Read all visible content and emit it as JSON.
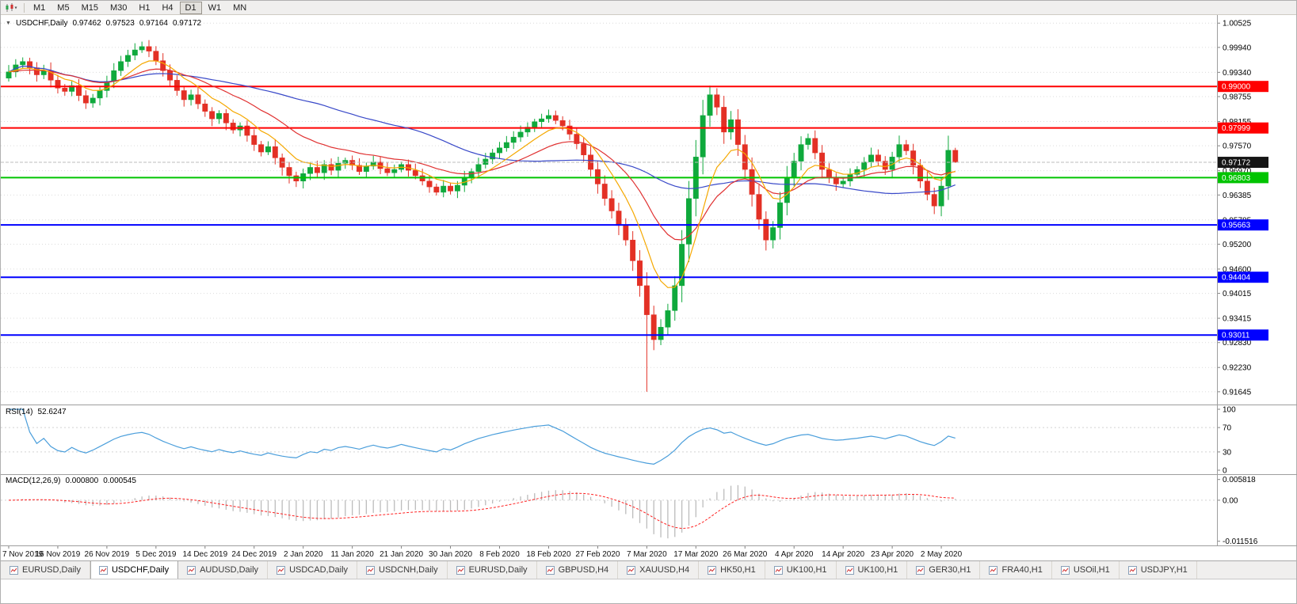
{
  "toolbar": {
    "timeframes": [
      {
        "label": "M1"
      },
      {
        "label": "M5"
      },
      {
        "label": "M15"
      },
      {
        "label": "M30"
      },
      {
        "label": "H1"
      },
      {
        "label": "H4"
      },
      {
        "label": "D1",
        "active": true
      },
      {
        "label": "W1"
      },
      {
        "label": "MN"
      }
    ]
  },
  "readout": {
    "collapse_arrow": "▼",
    "symbol": "USDCHF,Daily",
    "open": "0.97462",
    "high": "0.97523",
    "low": "0.97164",
    "close": "0.97172"
  },
  "chart_data": {
    "type": "candlestick",
    "symbol": "USDCHF",
    "timeframe": "Daily",
    "bull_color": "#0fa93c",
    "bear_color": "#e33025",
    "x_labels": [
      "7 Nov 2019",
      "16 Nov 2019",
      "26 Nov 2019",
      "5 Dec 2019",
      "14 Dec 2019",
      "24 Dec 2019",
      "2 Jan 2020",
      "11 Jan 2020",
      "21 Jan 2020",
      "30 Jan 2020",
      "8 Feb 2020",
      "18 Feb 2020",
      "27 Feb 2020",
      "7 Mar 2020",
      "17 Mar 2020",
      "26 Mar 2020",
      "4 Apr 2020",
      "14 Apr 2020",
      "23 Apr 2020",
      "2 May 2020"
    ],
    "x_label_every_n_candles": 7,
    "first_open": 0.992,
    "closes": [
      0.9935,
      0.9952,
      0.996,
      0.9945,
      0.9928,
      0.9938,
      0.9915,
      0.9896,
      0.9888,
      0.9902,
      0.9878,
      0.986,
      0.9872,
      0.989,
      0.9912,
      0.9938,
      0.996,
      0.9975,
      0.9988,
      0.9996,
      0.9985,
      0.9962,
      0.9938,
      0.9915,
      0.989,
      0.9868,
      0.988,
      0.9858,
      0.984,
      0.9822,
      0.9835,
      0.9812,
      0.9795,
      0.9805,
      0.9782,
      0.976,
      0.9742,
      0.9755,
      0.9728,
      0.9705,
      0.9685,
      0.9672,
      0.969,
      0.9705,
      0.9692,
      0.9712,
      0.9698,
      0.9715,
      0.9722,
      0.971,
      0.9695,
      0.9708,
      0.9718,
      0.9702,
      0.9692,
      0.97,
      0.9712,
      0.9698,
      0.9685,
      0.9672,
      0.9658,
      0.9645,
      0.966,
      0.9648,
      0.9662,
      0.968,
      0.9695,
      0.9712,
      0.9725,
      0.974,
      0.9752,
      0.9765,
      0.9778,
      0.979,
      0.9802,
      0.9815,
      0.9822,
      0.983,
      0.9818,
      0.9805,
      0.9785,
      0.9762,
      0.9735,
      0.97,
      0.9665,
      0.963,
      0.96,
      0.9565,
      0.953,
      0.948,
      0.942,
      0.935,
      0.929,
      0.932,
      0.936,
      0.942,
      0.952,
      0.963,
      0.973,
      0.983,
      0.988,
      0.985,
      0.979,
      0.982,
      0.976,
      0.97,
      0.964,
      0.958,
      0.953,
      0.956,
      0.962,
      0.968,
      0.972,
      0.976,
      0.9775,
      0.974,
      0.97,
      0.968,
      0.9665,
      0.9672,
      0.9688,
      0.97,
      0.9718,
      0.9735,
      0.972,
      0.97,
      0.973,
      0.976,
      0.9745,
      0.971,
      0.9672,
      0.964,
      0.9612,
      0.966,
      0.97462,
      0.97172
    ],
    "ohlc_overrides": {
      "19": {
        "h": 1.0008
      },
      "91": {
        "l": 0.91645
      },
      "100": {
        "h": 0.9902
      },
      "135": {
        "o": 0.97462,
        "h": 0.97523,
        "l": 0.97164,
        "c": 0.97172
      }
    },
    "y_axis_ticks": [
      "1.00525",
      "0.99940",
      "0.99340",
      "0.98755",
      "0.98155",
      "0.97570",
      "0.96970",
      "0.96385",
      "0.95785",
      "0.95200",
      "0.94600",
      "0.94015",
      "0.93415",
      "0.92830",
      "0.92230",
      "0.91645"
    ],
    "horizontal_lines": [
      {
        "value": 0.99,
        "label": "0.99000",
        "color": "#ff0000"
      },
      {
        "value": 0.97999,
        "label": "0.97999",
        "color": "#ff0000"
      },
      {
        "value": 0.96803,
        "label": "0.96803",
        "color": "#00c400"
      },
      {
        "value": 0.95663,
        "label": "0.95663",
        "color": "#0000ff"
      },
      {
        "value": 0.94404,
        "label": "0.94404",
        "color": "#0000ff"
      },
      {
        "value": 0.93011,
        "label": "0.93011",
        "color": "#0000ff"
      }
    ],
    "current_price": {
      "value": 0.97172,
      "label": "0.97172",
      "badge_color": "#151515"
    },
    "moving_averages": [
      {
        "name": "slow",
        "period": 45,
        "type": "sma",
        "color": "#3848c8"
      },
      {
        "name": "mid",
        "period": 20,
        "type": "ema",
        "color": "#e03131"
      },
      {
        "name": "fast",
        "period": 8,
        "type": "ema",
        "color": "#f5a800"
      }
    ],
    "indicators": {
      "rsi": {
        "label": "RSI(14)",
        "period": 14,
        "current": "52.6247",
        "levels": [
          "100",
          "70",
          "30",
          "0"
        ],
        "color": "#4a9edb"
      },
      "macd": {
        "label": "MACD(12,26,9)",
        "fast": 12,
        "slow": 26,
        "signal": 9,
        "current_main": "0.000800",
        "current_signal": "0.000545",
        "axis_labels": [
          "0.005818",
          "0.00",
          "-0.011516"
        ],
        "histogram_color": "#bcbcbc",
        "signal_color": "#ff2020"
      }
    }
  },
  "tabs": [
    {
      "label": "EURUSD,Daily"
    },
    {
      "label": "USDCHF,Daily",
      "active": true
    },
    {
      "label": "AUDUSD,Daily"
    },
    {
      "label": "USDCAD,Daily"
    },
    {
      "label": "USDCNH,Daily"
    },
    {
      "label": "EURUSD,Daily"
    },
    {
      "label": "GBPUSD,H4"
    },
    {
      "label": "XAUUSD,H4"
    },
    {
      "label": "HK50,H1"
    },
    {
      "label": "UK100,H1"
    },
    {
      "label": "UK100,H1"
    },
    {
      "label": "GER30,H1"
    },
    {
      "label": "FRA40,H1"
    },
    {
      "label": "USOil,H1"
    },
    {
      "label": "USDJPY,H1"
    }
  ]
}
